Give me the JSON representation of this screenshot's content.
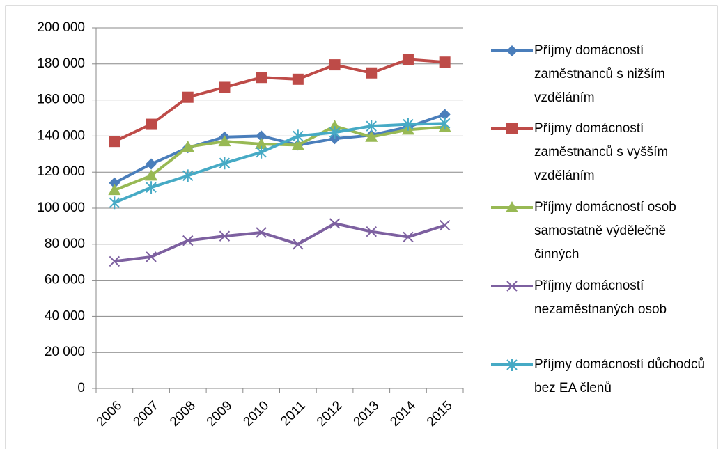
{
  "chart_data": {
    "type": "line",
    "categories": [
      "2006",
      "2007",
      "2008",
      "2009",
      "2010",
      "2011",
      "2012",
      "2013",
      "2014",
      "2015"
    ],
    "series": [
      {
        "name": "Příjmy domácností zaměstnanců s nižším vzděláním",
        "color": "#4a7ebb",
        "marker": "diamond",
        "values": [
          114000,
          124500,
          133500,
          139500,
          140000,
          135000,
          138500,
          140500,
          145000,
          152000
        ]
      },
      {
        "name": "Příjmy domácností zaměstnanců s vyšším vzděláním",
        "color": "#be4b48",
        "marker": "square",
        "values": [
          137000,
          146500,
          161500,
          167000,
          172500,
          171500,
          179500,
          175000,
          182500,
          181000
        ]
      },
      {
        "name": "Příjmy domácností osob samostatně výdělečně činných",
        "color": "#98b954",
        "marker": "triangle",
        "values": [
          110000,
          118000,
          134000,
          137000,
          135500,
          135000,
          145500,
          139500,
          143500,
          145000
        ]
      },
      {
        "name": "Příjmy domácností nezaměstnaných osob",
        "color": "#7d60a0",
        "marker": "x",
        "values": [
          70500,
          73000,
          82000,
          84500,
          86500,
          80000,
          91500,
          87000,
          84000,
          90500
        ]
      },
      {
        "name": "Příjmy domácností důchodců bez EA členů",
        "color": "#46aac5",
        "marker": "star",
        "values": [
          103000,
          111500,
          118000,
          125000,
          131000,
          140000,
          142000,
          145500,
          146500,
          147000
        ]
      }
    ],
    "ylim": [
      0,
      200000
    ],
    "yticks": [
      0,
      {
        "value": 20000,
        "label": "20 000"
      },
      {
        "value": 40000,
        "label": "40 000"
      },
      {
        "value": 60000,
        "label": "60 000"
      },
      {
        "value": 80000,
        "label": "80 000"
      },
      {
        "value": 100000,
        "label": "100 000"
      },
      {
        "value": 120000,
        "label": "120 000"
      },
      {
        "value": 140000,
        "label": "140 000"
      },
      {
        "value": 160000,
        "label": "160 000"
      },
      {
        "value": 180000,
        "label": "180 000"
      },
      {
        "value": 200000,
        "label": "200 000"
      }
    ],
    "grid": true,
    "legend": "right"
  }
}
